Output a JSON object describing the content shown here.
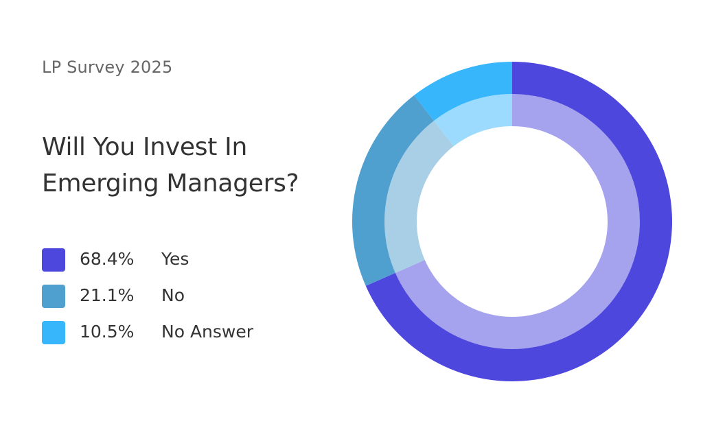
{
  "header": {
    "kicker": "LP Survey 2025",
    "title_line1": "Will You Invest In",
    "title_line2": "Emerging Managers?"
  },
  "chart_data": {
    "type": "pie",
    "style": "donut",
    "title": "Will You Invest In Emerging Managers?",
    "subtitle": "LP Survey 2025",
    "legend_position": "left",
    "slices": [
      {
        "label": "Yes",
        "value": 68.4,
        "display": "68.4%",
        "color": "#4e47de",
        "inner_color": "#a6a3ee"
      },
      {
        "label": "No",
        "value": 21.1,
        "display": "21.1%",
        "color": "#4f9fcf",
        "inner_color": "#a8cfe6"
      },
      {
        "label": "No Answer",
        "value": 10.5,
        "display": "10.5%",
        "color": "#38b6fc",
        "inner_color": "#9cdbfd"
      }
    ]
  }
}
